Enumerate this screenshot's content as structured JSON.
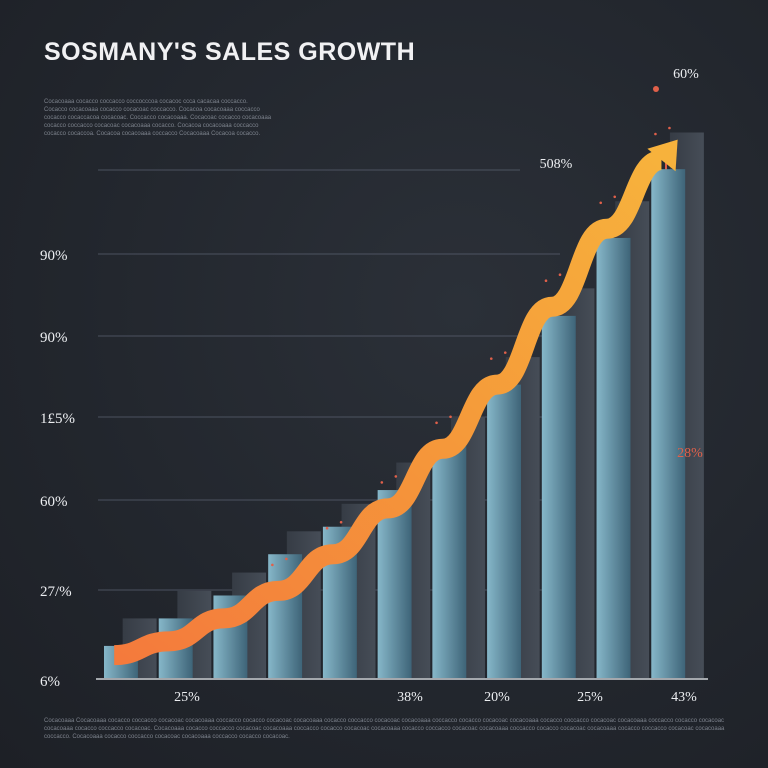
{
  "chart_data": {
    "type": "bar",
    "title": "SOSMANY'S SALES GROWTH",
    "subtitle": "",
    "xlabel": "",
    "ylabel": "",
    "y_tick_labels": [
      "6%",
      "27/%",
      "60%",
      "1£5%",
      "90%",
      "90%"
    ],
    "x_tick_labels": [
      "25%",
      "38%",
      "20%",
      "25%",
      "43%"
    ],
    "annotations": [
      "60%",
      "508%",
      "28%"
    ],
    "bars": [
      {
        "front": 7,
        "back": 13
      },
      {
        "front": 13,
        "back": 19
      },
      {
        "front": 18,
        "back": 23
      },
      {
        "front": 27,
        "back": 32
      },
      {
        "front": 33,
        "back": 38
      },
      {
        "front": 41,
        "back": 47
      },
      {
        "front": 51,
        "back": 57
      },
      {
        "front": 64,
        "back": 70
      },
      {
        "front": 79,
        "back": 85
      },
      {
        "front": 96,
        "back": 104
      },
      {
        "front": 111,
        "back": 119
      }
    ],
    "growth_curve": [
      5,
      8,
      13,
      19,
      27,
      37,
      50,
      64,
      81,
      98,
      113
    ],
    "ylim": [
      0,
      125
    ],
    "grid": true,
    "legend": "none"
  },
  "text": {
    "description": "Cocacoaaa cocacco coccacco coccocccoa cocacoc ccca cacacaa coccacco. Cocacco cocacoaaa cocacco cocacoac coccacco. Cocacoa cocacoaaa coccacco cocacco cocaccacoa cocacoac. Coccacco cocacoaaa. Cocacoac cocacco cocacoaaa cocacco coccacco cocacoac cocacoaaa cocacco. Cocacoa cocacoaaa coccacco cocacco cocaccoa. Cocacoa cocacoaaa coccacco Cocacoaaa Cocacoa cocacco.",
    "footnote": "Cocacoaaa Cocacoaaa cocacco coccacco cocacoac cocacoaaa coccacco cocacco cocacoac cocacoaaa cocacco coccacco cocacoac cocacoaaa coccacco cocacco cocacoac cocacoaaa cocacco coccacco cocacoac cocacoaaa coccacco cocacco cocacoac cocacoaaa cocacco coccacco cocacoac. Cocacoaaa cocacco coccacco cocacoac cocacoaaa coccacco cocacco cocacoac cocacoaaa cocacco coccacco cocacoac cocacoaaa coccacco cocacco cocacoac cocacoaaa cocacco coccacco cocacoac cocacoaaa coccacco. Cocacoaaa cocacco coccacco cocacoac cocacoaaa coccacco cocacco cocacoac."
  },
  "colors": {
    "background": "#23272f",
    "bar_front_light": "#6f9fb3",
    "bar_front_dark": "#2c4a5e",
    "bar_back": "#3a4049",
    "arrow_start": "#f47a3c",
    "arrow_end": "#f7b23c",
    "accent_red": "#e0604a"
  }
}
